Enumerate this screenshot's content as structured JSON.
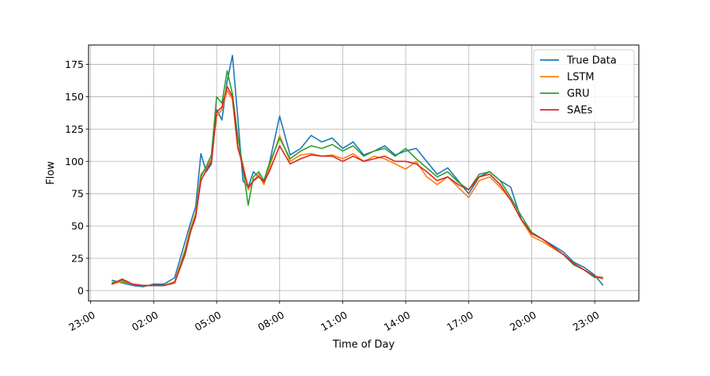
{
  "chart_data": {
    "type": "line",
    "xlabel": "Time of Day",
    "ylabel": "Flow",
    "x_unit": "hours since 23:00 (time axis)",
    "xlim": [
      -0.1,
      26.1
    ],
    "ylim": [
      -8,
      190
    ],
    "x_ticks": [
      {
        "hour": 0,
        "label": "23:00"
      },
      {
        "hour": 3,
        "label": "02:00"
      },
      {
        "hour": 6,
        "label": "05:00"
      },
      {
        "hour": 9,
        "label": "08:00"
      },
      {
        "hour": 12,
        "label": "11:00"
      },
      {
        "hour": 15,
        "label": "14:00"
      },
      {
        "hour": 18,
        "label": "17:00"
      },
      {
        "hour": 21,
        "label": "20:00"
      },
      {
        "hour": 24,
        "label": "23:00"
      }
    ],
    "y_ticks": [
      0,
      25,
      50,
      75,
      100,
      125,
      150,
      175
    ],
    "grid": true,
    "legend_position": "top-right",
    "series": [
      {
        "name": "True Data",
        "color": "#1f77b4",
        "x": [
          1,
          1.5,
          2,
          2.5,
          3,
          3.5,
          4,
          4.5,
          4.75,
          5,
          5.25,
          5.5,
          5.75,
          6,
          6.25,
          6.5,
          6.75,
          7,
          7.25,
          7.5,
          7.75,
          8,
          8.25,
          8.5,
          9,
          9.5,
          10,
          10.5,
          11,
          11.5,
          12,
          12.5,
          13,
          13.5,
          14,
          14.5,
          15,
          15.5,
          16,
          16.5,
          17,
          17.5,
          18,
          18.5,
          19,
          19.5,
          20,
          20.5,
          21,
          21.5,
          22,
          22.5,
          23,
          23.5,
          24,
          24.4
        ],
        "y": [
          8,
          6,
          4,
          3,
          5,
          5,
          10,
          38,
          52,
          65,
          106,
          92,
          98,
          140,
          132,
          162,
          182,
          135,
          85,
          80,
          92,
          88,
          85,
          98,
          135,
          105,
          110,
          120,
          115,
          118,
          110,
          115,
          105,
          108,
          112,
          105,
          108,
          110,
          100,
          90,
          95,
          85,
          75,
          88,
          92,
          85,
          80,
          55,
          45,
          40,
          35,
          30,
          22,
          18,
          12,
          4
        ]
      },
      {
        "name": "LSTM",
        "color": "#ff7f0e",
        "x": [
          1,
          1.5,
          2,
          2.5,
          3,
          3.5,
          4,
          4.5,
          4.75,
          5,
          5.25,
          5.5,
          5.75,
          6,
          6.25,
          6.5,
          6.75,
          7,
          7.25,
          7.5,
          7.75,
          8,
          8.25,
          8.5,
          9,
          9.5,
          10,
          10.5,
          11,
          11.5,
          12,
          12.5,
          13,
          13.5,
          14,
          14.5,
          15,
          15.5,
          16,
          16.5,
          17,
          17.5,
          18,
          18.5,
          19,
          19.5,
          20,
          20.5,
          21,
          21.5,
          22,
          22.5,
          23,
          23.5,
          24,
          24.4
        ],
        "y": [
          5,
          7,
          5,
          4,
          4,
          4,
          7,
          32,
          48,
          60,
          90,
          95,
          102,
          135,
          140,
          155,
          148,
          110,
          98,
          78,
          85,
          90,
          82,
          95,
          120,
          100,
          105,
          106,
          104,
          105,
          102,
          106,
          100,
          104,
          102,
          98,
          94,
          100,
          88,
          82,
          88,
          80,
          72,
          85,
          88,
          80,
          70,
          55,
          42,
          38,
          33,
          28,
          20,
          16,
          11,
          9
        ]
      },
      {
        "name": "GRU",
        "color": "#2ca02c",
        "x": [
          1,
          1.5,
          2,
          2.5,
          3,
          3.5,
          4,
          4.5,
          4.75,
          5,
          5.25,
          5.5,
          5.75,
          6,
          6.25,
          6.5,
          6.75,
          7,
          7.25,
          7.5,
          7.75,
          8,
          8.25,
          8.5,
          9,
          9.5,
          10,
          10.5,
          11,
          11.5,
          12,
          12.5,
          13,
          13.5,
          14,
          14.5,
          15,
          15.5,
          16,
          16.5,
          17,
          17.5,
          18,
          18.5,
          19,
          19.5,
          20,
          20.5,
          21,
          21.5,
          22,
          22.5,
          23,
          23.5,
          24,
          24.4
        ],
        "y": [
          6,
          8,
          5,
          4,
          4,
          4,
          6,
          30,
          46,
          58,
          88,
          96,
          105,
          150,
          145,
          170,
          152,
          120,
          95,
          66,
          88,
          92,
          85,
          98,
          118,
          102,
          108,
          112,
          110,
          113,
          108,
          112,
          104,
          108,
          110,
          104,
          110,
          102,
          95,
          88,
          92,
          84,
          78,
          90,
          92,
          85,
          72,
          58,
          45,
          40,
          34,
          28,
          20,
          16,
          10,
          10
        ]
      },
      {
        "name": "SAEs",
        "color": "#d62728",
        "x": [
          1,
          1.5,
          2,
          2.5,
          3,
          3.5,
          4,
          4.5,
          4.75,
          5,
          5.25,
          5.5,
          5.75,
          6,
          6.25,
          6.5,
          6.75,
          7,
          7.25,
          7.5,
          7.75,
          8,
          8.25,
          8.5,
          9,
          9.5,
          10,
          10.5,
          11,
          11.5,
          12,
          12.5,
          13,
          13.5,
          14,
          14.5,
          15,
          15.5,
          16,
          16.5,
          17,
          17.5,
          18,
          18.5,
          19,
          19.5,
          20,
          20.5,
          21,
          21.5,
          22,
          22.5,
          23,
          23.5,
          24,
          24.4
        ],
        "y": [
          5,
          9,
          5,
          4,
          4,
          4,
          6,
          28,
          45,
          57,
          85,
          93,
          100,
          138,
          142,
          158,
          150,
          112,
          95,
          80,
          85,
          88,
          84,
          92,
          112,
          98,
          102,
          105,
          104,
          104,
          100,
          104,
          100,
          102,
          104,
          100,
          100,
          98,
          92,
          85,
          88,
          82,
          78,
          88,
          90,
          82,
          70,
          55,
          44,
          40,
          34,
          28,
          21,
          16,
          11,
          10
        ]
      }
    ]
  }
}
